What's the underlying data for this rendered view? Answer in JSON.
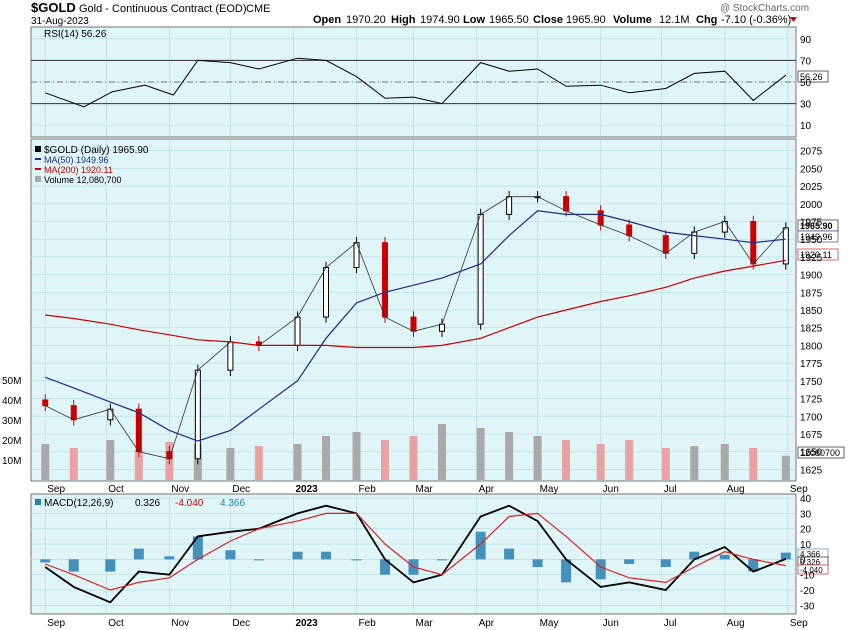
{
  "header": {
    "symbol": "$GOLD",
    "description": "Gold - Continuous Contract (EOD)",
    "exchange": "CME",
    "date": "31-Aug-2023",
    "ohlc": {
      "open_label": "Open",
      "open": "1970.20",
      "high_label": "High",
      "high": "1974.90",
      "low_label": "Low",
      "low": "1965.50",
      "close_label": "Close",
      "close": "1965.90",
      "volume_label": "Volume",
      "volume": "12.1M",
      "chg_label": "Chg",
      "chg": "-7.10 (-0.36%)"
    },
    "watermark": "@ StockCharts.com"
  },
  "colors": {
    "panel_bg": "#dff5f7",
    "grid": "#b9dde1",
    "up": "#000000",
    "down": "#cc0000",
    "ma50": "#1f2a8c",
    "ma200": "#cc0000",
    "volume_up": "#a9a9a9",
    "volume_down": "#e6a3a3",
    "macd_line": "#000000",
    "signal_line": "#e02020",
    "histogram": "#2a7fb0"
  },
  "x_axis_labels": [
    "Sep",
    "Oct",
    "Nov",
    "Dec",
    "2023",
    "Feb",
    "Mar",
    "Apr",
    "May",
    "Jun",
    "Jul",
    "Aug",
    "Sep"
  ],
  "chart_data": [
    {
      "type": "line",
      "panel": "rsi",
      "title": "RSI(14) 56.26",
      "last_value_label": "56.26",
      "ylim": [
        0,
        100
      ],
      "y_ticks": [
        "90",
        "70",
        "50",
        "30",
        "10"
      ],
      "reference_lines": [
        70,
        30
      ],
      "x_dates": [
        "2022-09-01",
        "2022-09-20",
        "2022-10-04",
        "2022-10-20",
        "2022-11-03",
        "2022-11-15",
        "2022-12-01",
        "2022-12-15",
        "2023-01-03",
        "2023-01-17",
        "2023-02-01",
        "2023-02-15",
        "2023-03-01",
        "2023-03-15",
        "2023-04-03",
        "2023-04-17",
        "2023-05-01",
        "2023-05-15",
        "2023-06-01",
        "2023-06-15",
        "2023-07-03",
        "2023-07-17",
        "2023-08-01",
        "2023-08-15",
        "2023-08-31"
      ],
      "values": [
        40,
        27,
        41,
        47,
        38,
        70,
        68,
        62,
        72,
        70,
        55,
        35,
        36,
        30,
        68,
        60,
        62,
        46,
        47,
        40,
        44,
        58,
        60,
        33,
        56.26
      ]
    },
    {
      "type": "candlestick",
      "panel": "price",
      "legend": [
        {
          "name": "$GOLD (Daily) 1965.90"
        },
        {
          "name": "MA(50) 1949.96"
        },
        {
          "name": "MA(200) 1920.11"
        },
        {
          "name": "Volume 12,080,700"
        }
      ],
      "price_ticks": [
        2075,
        2050,
        2025,
        2000,
        1975,
        1950,
        1925,
        1900,
        1875,
        1850,
        1825,
        1800,
        1775,
        1750,
        1725,
        1700,
        1675,
        1650,
        1625
      ],
      "ylim": [
        1610,
        2090
      ],
      "last_labels": {
        "close": "1965.90",
        "ma50": "1949.96",
        "ma200": "1920.11"
      },
      "x_dates": [
        "2022-09-01",
        "2022-09-15",
        "2022-10-03",
        "2022-10-17",
        "2022-11-01",
        "2022-11-15",
        "2022-12-01",
        "2022-12-15",
        "2023-01-03",
        "2023-01-17",
        "2023-02-01",
        "2023-02-15",
        "2023-03-01",
        "2023-03-15",
        "2023-04-03",
        "2023-04-17",
        "2023-05-01",
        "2023-05-15",
        "2023-06-01",
        "2023-06-15",
        "2023-07-03",
        "2023-07-17",
        "2023-08-01",
        "2023-08-15",
        "2023-08-31"
      ],
      "close": [
        1715,
        1695,
        1710,
        1650,
        1640,
        1765,
        1805,
        1800,
        1840,
        1910,
        1945,
        1840,
        1820,
        1830,
        1985,
        2010,
        2010,
        1990,
        1970,
        1955,
        1930,
        1960,
        1975,
        1915,
        1965.9
      ],
      "ma50": [
        1755,
        1740,
        1720,
        1705,
        1680,
        1665,
        1680,
        1710,
        1750,
        1810,
        1860,
        1875,
        1885,
        1895,
        1915,
        1955,
        1990,
        1985,
        1985,
        1975,
        1960,
        1955,
        1950,
        1945,
        1949.96
      ],
      "ma200": [
        1843,
        1838,
        1830,
        1822,
        1815,
        1808,
        1805,
        1800,
        1800,
        1800,
        1797,
        1797,
        1797,
        1800,
        1810,
        1825,
        1840,
        1850,
        1862,
        1870,
        1882,
        1895,
        1905,
        1912,
        1920.11
      ]
    },
    {
      "type": "bar",
      "panel": "volume",
      "ylim": [
        0,
        60
      ],
      "y_ticks": [
        "50M",
        "40M",
        "30M",
        "20M",
        "10M"
      ],
      "last_value_label": "12080700",
      "x_dates": [
        "2022-09-01",
        "2022-09-15",
        "2022-10-03",
        "2022-10-17",
        "2022-11-01",
        "2022-11-15",
        "2022-12-01",
        "2022-12-15",
        "2023-01-03",
        "2023-01-17",
        "2023-02-01",
        "2023-02-15",
        "2023-03-01",
        "2023-03-15",
        "2023-04-03",
        "2023-04-17",
        "2023-05-01",
        "2023-05-15",
        "2023-06-01",
        "2023-06-15",
        "2023-07-03",
        "2023-07-17",
        "2023-08-01",
        "2023-08-15",
        "2023-08-31"
      ],
      "values": [
        18,
        16,
        20,
        15,
        19,
        18,
        16,
        17,
        18,
        22,
        24,
        20,
        22,
        28,
        26,
        24,
        22,
        20,
        18,
        20,
        16,
        17,
        18,
        16,
        12.08
      ]
    },
    {
      "type": "line",
      "panel": "macd",
      "title": "MACD(12,26,9)",
      "values_label": {
        "macd": "0.326",
        "signal": "-4.040",
        "histogram": "4.366"
      },
      "ylim": [
        -35,
        42
      ],
      "y_ticks": [
        "40",
        "30",
        "20",
        "10",
        "0",
        "-10",
        "-20",
        "-30"
      ],
      "x_dates": [
        "2022-09-01",
        "2022-09-15",
        "2022-10-03",
        "2022-10-17",
        "2022-11-01",
        "2022-11-15",
        "2022-12-01",
        "2022-12-15",
        "2023-01-03",
        "2023-01-17",
        "2023-02-01",
        "2023-02-15",
        "2023-03-01",
        "2023-03-15",
        "2023-04-03",
        "2023-04-17",
        "2023-05-01",
        "2023-05-15",
        "2023-06-01",
        "2023-06-15",
        "2023-07-03",
        "2023-07-17",
        "2023-08-01",
        "2023-08-15",
        "2023-08-31"
      ],
      "series": [
        {
          "name": "MACD",
          "values": [
            -5,
            -18,
            -28,
            -8,
            -10,
            15,
            18,
            20,
            30,
            35,
            30,
            0,
            -15,
            -10,
            28,
            35,
            25,
            0,
            -18,
            -15,
            -20,
            0,
            8,
            -8,
            0.326
          ]
        },
        {
          "name": "Signal",
          "values": [
            -3,
            -10,
            -20,
            -15,
            -12,
            0,
            12,
            20,
            25,
            30,
            30,
            10,
            -5,
            -10,
            10,
            28,
            30,
            15,
            -5,
            -12,
            -15,
            -5,
            5,
            0,
            -4.04
          ]
        },
        {
          "name": "Histogram",
          "values": [
            -2,
            -8,
            -8,
            7,
            2,
            15,
            6,
            0,
            5,
            5,
            0,
            -10,
            -10,
            0,
            18,
            7,
            -5,
            -15,
            -13,
            -3,
            -5,
            5,
            3,
            -8,
            4.366
          ]
        }
      ]
    }
  ]
}
